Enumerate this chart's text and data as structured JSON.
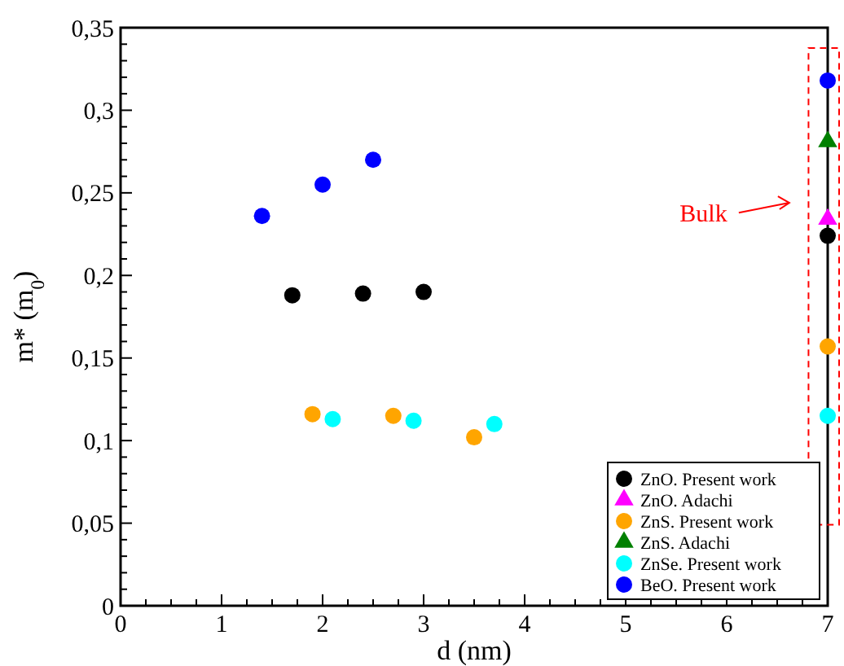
{
  "chart_data": {
    "type": "scatter",
    "xlabel": "d (nm)",
    "ylabel": "m* (m$_{0}$)",
    "xlim": [
      0,
      7
    ],
    "xticks": [
      0,
      1,
      2,
      3,
      4,
      5,
      6,
      7
    ],
    "ylim": [
      0,
      0.35
    ],
    "yticks": [
      {
        "value": 0,
        "label": "0"
      },
      {
        "value": 0.05,
        "label": "0,05"
      },
      {
        "value": 0.1,
        "label": "0,1"
      },
      {
        "value": 0.15,
        "label": "0,15"
      },
      {
        "value": 0.2,
        "label": "0,2"
      },
      {
        "value": 0.25,
        "label": "0,25"
      },
      {
        "value": 0.3,
        "label": "0,3"
      },
      {
        "value": 0.35,
        "label": "0,35"
      }
    ],
    "grid": false,
    "legend": "bottom right",
    "annotations": [
      "Bulk"
    ],
    "series": [
      {
        "name": "ZnO. Present work",
        "color": "#000000",
        "marker": "circle",
        "x": [
          1.7,
          2.4,
          3.0,
          7
        ],
        "values": [
          0.188,
          0.189,
          0.19,
          0.224
        ]
      },
      {
        "name": "ZnO. Adachi",
        "color": "#ff00ff",
        "marker": "triangle",
        "x": [
          7
        ],
        "values": [
          0.234
        ]
      },
      {
        "name": "ZnS. Present work",
        "color": "#ffa500",
        "marker": "circle",
        "x": [
          1.9,
          2.7,
          3.5,
          7
        ],
        "values": [
          0.116,
          0.115,
          0.102,
          0.157
        ]
      },
      {
        "name": "ZnS. Adachi",
        "color": "#008000",
        "marker": "triangle",
        "x": [
          7
        ],
        "values": [
          0.281
        ]
      },
      {
        "name": "ZnSe. Present work",
        "color": "#00ffff",
        "marker": "circle",
        "x": [
          2.1,
          2.9,
          3.7,
          7
        ],
        "values": [
          0.113,
          0.112,
          0.11,
          0.115
        ]
      },
      {
        "name": "BeO. Present work",
        "color": "#0000ff",
        "marker": "circle",
        "x": [
          1.4,
          2.0,
          2.5,
          7
        ],
        "values": [
          0.236,
          0.255,
          0.27,
          0.318
        ]
      }
    ]
  }
}
